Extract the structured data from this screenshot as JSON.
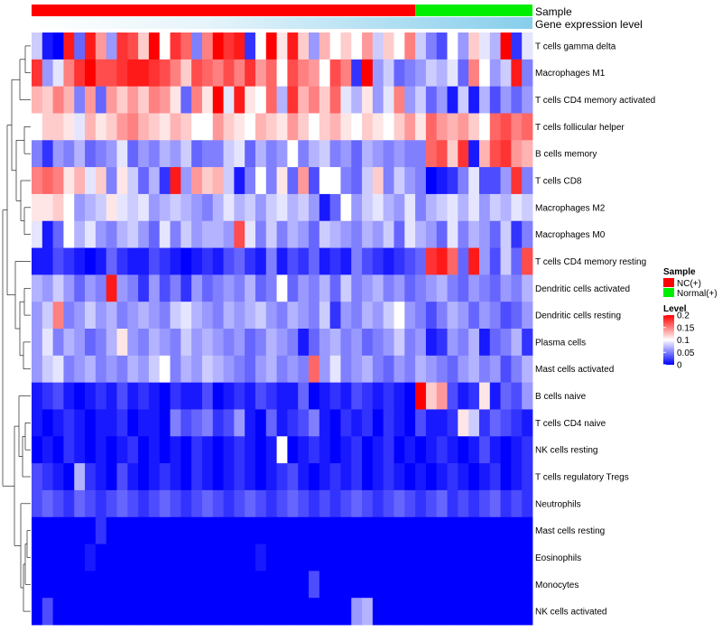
{
  "chart_data": {
    "type": "heatmap",
    "annotations": {
      "sample_label": "Sample",
      "gene_label": "Gene expression level",
      "nc_count": 36,
      "normal_count": 11
    },
    "rows": [
      "T cells gamma delta",
      "Macrophages M1",
      "T cells CD4 memory activated",
      "T cells follicular helper",
      "B cells memory",
      "T cells CD8",
      "Macrophages M2",
      "Macrophages M0",
      "T cells CD4 memory resting",
      "Dendritic cells activated",
      "Dendritic cells resting",
      "Plasma cells",
      "Mast cells activated",
      "B cells naive",
      "T cells CD4 naive",
      "NK cells resting",
      "T cells regulatory  Tregs",
      "Neutrophils",
      "Mast cells resting",
      "Eosinophils",
      "Monocytes",
      "NK cells activated"
    ],
    "n_columns": 47,
    "row_levels": [
      [
        0.08,
        0.01,
        0.0,
        0.19,
        0.04,
        0.19,
        0.14,
        0.06,
        0.18,
        0.17,
        0.12,
        0.2,
        0.1,
        0.18,
        0.16,
        0.05,
        0.15,
        0.2,
        0.18,
        0.19,
        0.02,
        0.1,
        0.2,
        0.11,
        0.19,
        0.12,
        0.06,
        0.13,
        0.1,
        0.12,
        0.1,
        0.14,
        0.08,
        0.12,
        0.1,
        0.15,
        0.08,
        0.05,
        0.03,
        0.1,
        0.06,
        0.12,
        0.09,
        0.07,
        0.2,
        0.02,
        0.09
      ],
      [
        0.18,
        0.06,
        0.09,
        0.15,
        0.18,
        0.2,
        0.17,
        0.17,
        0.18,
        0.19,
        0.19,
        0.18,
        0.17,
        0.15,
        0.12,
        0.17,
        0.16,
        0.15,
        0.17,
        0.15,
        0.18,
        0.14,
        0.16,
        0.1,
        0.17,
        0.15,
        0.14,
        0.1,
        0.17,
        0.15,
        0.02,
        0.2,
        0.06,
        0.08,
        0.04,
        0.05,
        0.06,
        0.08,
        0.07,
        0.09,
        0.04,
        0.15,
        0.1,
        0.06,
        0.08,
        0.19,
        0.05
      ],
      [
        0.13,
        0.12,
        0.15,
        0.13,
        0.05,
        0.14,
        0.04,
        0.14,
        0.12,
        0.14,
        0.12,
        0.15,
        0.14,
        0.11,
        0.04,
        0.15,
        0.11,
        0.2,
        0.09,
        0.19,
        0.11,
        0.1,
        0.16,
        0.07,
        0.18,
        0.13,
        0.15,
        0.12,
        0.16,
        0.09,
        0.07,
        0.11,
        0.06,
        0.09,
        0.15,
        0.06,
        0.08,
        0.04,
        0.06,
        0.01,
        0.08,
        0.01,
        0.07,
        0.03,
        0.06,
        0.04,
        0.06
      ],
      [
        0.1,
        0.12,
        0.12,
        0.11,
        0.09,
        0.13,
        0.11,
        0.12,
        0.14,
        0.15,
        0.13,
        0.12,
        0.11,
        0.13,
        0.12,
        0.1,
        0.1,
        0.14,
        0.12,
        0.11,
        0.1,
        0.13,
        0.12,
        0.11,
        0.14,
        0.12,
        0.1,
        0.12,
        0.13,
        0.11,
        0.1,
        0.12,
        0.11,
        0.1,
        0.12,
        0.14,
        0.11,
        0.16,
        0.14,
        0.13,
        0.14,
        0.12,
        0.1,
        0.16,
        0.17,
        0.15,
        0.16
      ],
      [
        0.05,
        0.02,
        0.06,
        0.05,
        0.07,
        0.04,
        0.05,
        0.06,
        0.09,
        0.04,
        0.06,
        0.05,
        0.07,
        0.06,
        0.08,
        0.04,
        0.05,
        0.05,
        0.08,
        0.09,
        0.04,
        0.07,
        0.05,
        0.06,
        0.1,
        0.05,
        0.07,
        0.08,
        0.05,
        0.06,
        0.04,
        0.07,
        0.06,
        0.05,
        0.06,
        0.05,
        0.05,
        0.16,
        0.17,
        0.12,
        0.18,
        0.01,
        0.13,
        0.17,
        0.18,
        0.14,
        0.13
      ],
      [
        0.15,
        0.16,
        0.15,
        0.11,
        0.13,
        0.09,
        0.12,
        0.05,
        0.11,
        0.08,
        0.04,
        0.07,
        0.02,
        0.19,
        0.06,
        0.14,
        0.12,
        0.13,
        0.08,
        0.01,
        0.05,
        0.1,
        0.05,
        0.11,
        0.04,
        0.14,
        0.03,
        0.1,
        0.1,
        0.05,
        0.04,
        0.08,
        0.12,
        0.05,
        0.08,
        0.06,
        0.05,
        0.0,
        0.01,
        0.02,
        0.05,
        0.09,
        0.03,
        0.03,
        0.06,
        0.18,
        0.05
      ],
      [
        0.11,
        0.11,
        0.12,
        0.1,
        0.06,
        0.07,
        0.08,
        0.11,
        0.09,
        0.08,
        0.09,
        0.06,
        0.07,
        0.08,
        0.07,
        0.06,
        0.05,
        0.07,
        0.09,
        0.07,
        0.08,
        0.06,
        0.08,
        0.09,
        0.07,
        0.08,
        0.06,
        0.01,
        0.04,
        0.1,
        0.06,
        0.08,
        0.09,
        0.07,
        0.06,
        0.09,
        0.05,
        0.07,
        0.08,
        0.09,
        0.07,
        0.09,
        0.06,
        0.08,
        0.07,
        0.09,
        0.08
      ],
      [
        0.09,
        0.01,
        0.04,
        0.1,
        0.07,
        0.09,
        0.06,
        0.05,
        0.07,
        0.08,
        0.06,
        0.04,
        0.09,
        0.05,
        0.08,
        0.06,
        0.07,
        0.07,
        0.06,
        0.17,
        0.09,
        0.05,
        0.08,
        0.05,
        0.07,
        0.06,
        0.04,
        0.08,
        0.07,
        0.06,
        0.05,
        0.07,
        0.06,
        0.08,
        0.04,
        0.09,
        0.07,
        0.06,
        0.04,
        0.09,
        0.05,
        0.07,
        0.06,
        0.04,
        0.08,
        0.02,
        0.05
      ],
      [
        0.01,
        0.01,
        0.03,
        0.02,
        0.01,
        0.0,
        0.01,
        0.04,
        0.02,
        0.01,
        0.01,
        0.03,
        0.02,
        0.01,
        0.0,
        0.01,
        0.02,
        0.01,
        0.03,
        0.04,
        0.02,
        0.01,
        0.05,
        0.01,
        0.03,
        0.02,
        0.04,
        0.01,
        0.02,
        0.01,
        0.05,
        0.03,
        0.02,
        0.01,
        0.02,
        0.03,
        0.04,
        0.18,
        0.19,
        0.16,
        0.04,
        0.19,
        0.06,
        0.03,
        0.08,
        0.04,
        0.17
      ],
      [
        0.07,
        0.06,
        0.08,
        0.06,
        0.04,
        0.06,
        0.05,
        0.19,
        0.06,
        0.05,
        0.02,
        0.06,
        0.03,
        0.05,
        0.02,
        0.06,
        0.04,
        0.05,
        0.06,
        0.05,
        0.07,
        0.04,
        0.05,
        0.1,
        0.04,
        0.06,
        0.05,
        0.07,
        0.04,
        0.08,
        0.05,
        0.06,
        0.07,
        0.05,
        0.06,
        0.04,
        0.05,
        0.06,
        0.07,
        0.05,
        0.04,
        0.06,
        0.05,
        0.04,
        0.06,
        0.05,
        0.07
      ],
      [
        0.06,
        0.08,
        0.15,
        0.05,
        0.06,
        0.08,
        0.06,
        0.07,
        0.05,
        0.06,
        0.07,
        0.06,
        0.05,
        0.08,
        0.09,
        0.07,
        0.06,
        0.05,
        0.07,
        0.06,
        0.07,
        0.08,
        0.06,
        0.05,
        0.07,
        0.06,
        0.05,
        0.08,
        0.02,
        0.06,
        0.05,
        0.07,
        0.06,
        0.08,
        0.1,
        0.06,
        0.05,
        0.03,
        0.05,
        0.07,
        0.06,
        0.04,
        0.06,
        0.05,
        0.03,
        0.04,
        0.06
      ],
      [
        0.06,
        0.09,
        0.05,
        0.07,
        0.06,
        0.04,
        0.05,
        0.07,
        0.11,
        0.06,
        0.05,
        0.07,
        0.06,
        0.05,
        0.08,
        0.06,
        0.07,
        0.06,
        0.05,
        0.06,
        0.04,
        0.05,
        0.07,
        0.06,
        0.05,
        0.01,
        0.04,
        0.06,
        0.07,
        0.05,
        0.06,
        0.04,
        0.05,
        0.06,
        0.08,
        0.05,
        0.06,
        0.01,
        0.02,
        0.06,
        0.05,
        0.07,
        0.01,
        0.04,
        0.05,
        0.07,
        0.02
      ],
      [
        0.06,
        0.08,
        0.09,
        0.05,
        0.06,
        0.07,
        0.05,
        0.06,
        0.05,
        0.07,
        0.06,
        0.08,
        0.1,
        0.05,
        0.07,
        0.06,
        0.08,
        0.07,
        0.06,
        0.05,
        0.04,
        0.06,
        0.07,
        0.05,
        0.06,
        0.05,
        0.16,
        0.06,
        0.09,
        0.05,
        0.06,
        0.07,
        0.05,
        0.04,
        0.06,
        0.05,
        0.07,
        0.06,
        0.05,
        0.04,
        0.06,
        0.07,
        0.05,
        0.06,
        0.03,
        0.05,
        0.07
      ],
      [
        0.01,
        0.02,
        0.03,
        0.01,
        0.0,
        0.01,
        0.02,
        0.01,
        0.03,
        0.01,
        0.02,
        0.01,
        0.0,
        0.02,
        0.01,
        0.01,
        0.03,
        0.0,
        0.01,
        0.02,
        0.01,
        0.03,
        0.02,
        0.01,
        0.01,
        0.04,
        0.0,
        0.01,
        0.02,
        0.01,
        0.03,
        0.02,
        0.01,
        0.02,
        0.01,
        0.0,
        0.2,
        0.12,
        0.14,
        0.03,
        0.01,
        0.02,
        0.11,
        0.01,
        0.04,
        0.03,
        0.06
      ],
      [
        0.01,
        0.0,
        0.01,
        0.02,
        0.01,
        0.0,
        0.01,
        0.01,
        0.02,
        0.0,
        0.01,
        0.01,
        0.0,
        0.05,
        0.03,
        0.04,
        0.05,
        0.02,
        0.03,
        0.06,
        0.01,
        0.0,
        0.04,
        0.01,
        0.02,
        0.03,
        0.05,
        0.01,
        0.0,
        0.02,
        0.01,
        0.02,
        0.0,
        0.02,
        0.01,
        0.0,
        0.03,
        0.01,
        0.01,
        0.02,
        0.11,
        0.08,
        0.02,
        0.04,
        0.03,
        0.02,
        0.01
      ],
      [
        0.0,
        0.01,
        0.0,
        0.02,
        0.01,
        0.0,
        0.01,
        0.0,
        0.01,
        0.02,
        0.0,
        0.01,
        0.0,
        0.01,
        0.0,
        0.02,
        0.01,
        0.0,
        0.01,
        0.02,
        0.01,
        0.0,
        0.01,
        0.1,
        0.0,
        0.01,
        0.02,
        0.01,
        0.0,
        0.01,
        0.02,
        0.0,
        0.01,
        0.02,
        0.0,
        0.01,
        0.0,
        0.01,
        0.02,
        0.01,
        0.0,
        0.01,
        0.03,
        0.01,
        0.0,
        0.01,
        0.02
      ],
      [
        0.03,
        0.02,
        0.01,
        0.0,
        0.07,
        0.02,
        0.01,
        0.0,
        0.03,
        0.01,
        0.0,
        0.01,
        0.02,
        0.01,
        0.0,
        0.02,
        0.01,
        0.0,
        0.01,
        0.02,
        0.01,
        0.0,
        0.01,
        0.02,
        0.03,
        0.01,
        0.0,
        0.01,
        0.02,
        0.01,
        0.02,
        0.0,
        0.01,
        0.02,
        0.01,
        0.0,
        0.01,
        0.0,
        0.01,
        0.02,
        0.01,
        0.0,
        0.01,
        0.02,
        0.0,
        0.01,
        0.02
      ],
      [
        0.03,
        0.04,
        0.03,
        0.02,
        0.04,
        0.03,
        0.02,
        0.03,
        0.04,
        0.03,
        0.02,
        0.03,
        0.04,
        0.03,
        0.02,
        0.03,
        0.04,
        0.03,
        0.02,
        0.03,
        0.04,
        0.03,
        0.02,
        0.03,
        0.04,
        0.03,
        0.02,
        0.03,
        0.02,
        0.03,
        0.04,
        0.03,
        0.02,
        0.03,
        0.04,
        0.03,
        0.02,
        0.03,
        0.04,
        0.02,
        0.03,
        0.02,
        0.03,
        0.04,
        0.02,
        0.03,
        0.02
      ],
      [
        0.0,
        0.0,
        0.0,
        0.0,
        0.0,
        0.0,
        0.02,
        0.0,
        0.0,
        0.0,
        0.0,
        0.0,
        0.0,
        0.0,
        0.0,
        0.0,
        0.0,
        0.0,
        0.0,
        0.0,
        0.0,
        0.0,
        0.0,
        0.0,
        0.0,
        0.0,
        0.0,
        0.0,
        0.0,
        0.0,
        0.0,
        0.0,
        0.0,
        0.0,
        0.0,
        0.0,
        0.0,
        0.0,
        0.0,
        0.0,
        0.0,
        0.0,
        0.0,
        0.0,
        0.0,
        0.0,
        0.0
      ],
      [
        0.0,
        0.0,
        0.0,
        0.0,
        0.0,
        0.01,
        0.0,
        0.0,
        0.0,
        0.0,
        0.0,
        0.0,
        0.0,
        0.0,
        0.0,
        0.0,
        0.0,
        0.0,
        0.0,
        0.0,
        0.0,
        0.01,
        0.0,
        0.0,
        0.0,
        0.0,
        0.0,
        0.0,
        0.0,
        0.0,
        0.0,
        0.0,
        0.0,
        0.0,
        0.0,
        0.0,
        0.0,
        0.0,
        0.0,
        0.0,
        0.0,
        0.0,
        0.0,
        0.0,
        0.0,
        0.0,
        0.0
      ],
      [
        0.0,
        0.0,
        0.0,
        0.0,
        0.0,
        0.0,
        0.0,
        0.0,
        0.0,
        0.0,
        0.0,
        0.0,
        0.0,
        0.0,
        0.0,
        0.0,
        0.0,
        0.0,
        0.0,
        0.0,
        0.0,
        0.0,
        0.0,
        0.0,
        0.0,
        0.0,
        0.03,
        0.0,
        0.0,
        0.0,
        0.0,
        0.0,
        0.0,
        0.0,
        0.0,
        0.0,
        0.0,
        0.0,
        0.0,
        0.0,
        0.0,
        0.0,
        0.0,
        0.0,
        0.0,
        0.0,
        0.0
      ],
      [
        0.0,
        0.03,
        0.0,
        0.0,
        0.0,
        0.0,
        0.0,
        0.0,
        0.0,
        0.0,
        0.0,
        0.0,
        0.0,
        0.0,
        0.0,
        0.0,
        0.0,
        0.0,
        0.0,
        0.0,
        0.0,
        0.0,
        0.0,
        0.0,
        0.0,
        0.0,
        0.0,
        0.0,
        0.0,
        0.0,
        0.06,
        0.07,
        0.0,
        0.0,
        0.0,
        0.0,
        0.0,
        0.0,
        0.0,
        0.0,
        0.0,
        0.0,
        0.0,
        0.0,
        0.0,
        0.0,
        0.0
      ]
    ],
    "color_scale": {
      "min": 0,
      "mid": 0.1,
      "max": 0.2,
      "low_color": "#0000ff",
      "mid_color": "#ffffff",
      "high_color": "#ff0000"
    },
    "legend": {
      "sample_title": "Sample",
      "sample_items": [
        {
          "label": "NC(+)",
          "color": "#ff0000"
        },
        {
          "label": "Normal(+)",
          "color": "#00ee00"
        }
      ],
      "level_title": "Level",
      "level_ticks": [
        {
          "label": "0.2",
          "value": 0.2
        },
        {
          "label": "0.15",
          "value": 0.15
        },
        {
          "label": "0.1",
          "value": 0.1
        },
        {
          "label": "0.05",
          "value": 0.05
        },
        {
          "label": "0",
          "value": 0
        }
      ]
    },
    "colors": {
      "nc": "#ff0000",
      "normal": "#00ee00",
      "gene_expression": "#87ceeb",
      "dendrogram": "#000000"
    }
  }
}
